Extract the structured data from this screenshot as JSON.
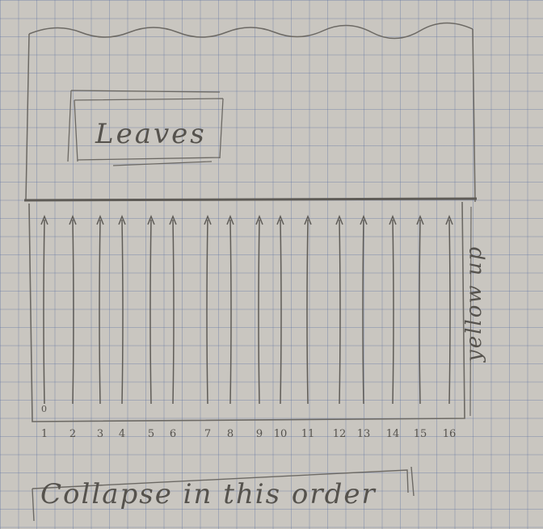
{
  "top_box": {
    "label": "Leaves"
  },
  "column_box": {
    "zero_marker": "0"
  },
  "columns": [
    {
      "label": "1"
    },
    {
      "label": "2"
    },
    {
      "label": "3"
    },
    {
      "label": "4"
    },
    {
      "label": "5"
    },
    {
      "label": "6"
    },
    {
      "label": "7"
    },
    {
      "label": "8"
    },
    {
      "label": "9"
    },
    {
      "label": "10"
    },
    {
      "label": "11"
    },
    {
      "label": "12"
    },
    {
      "label": "13"
    },
    {
      "label": "14"
    },
    {
      "label": "15"
    },
    {
      "label": "16"
    }
  ],
  "side_note": "yellow up",
  "caption": "Collapse in this order"
}
